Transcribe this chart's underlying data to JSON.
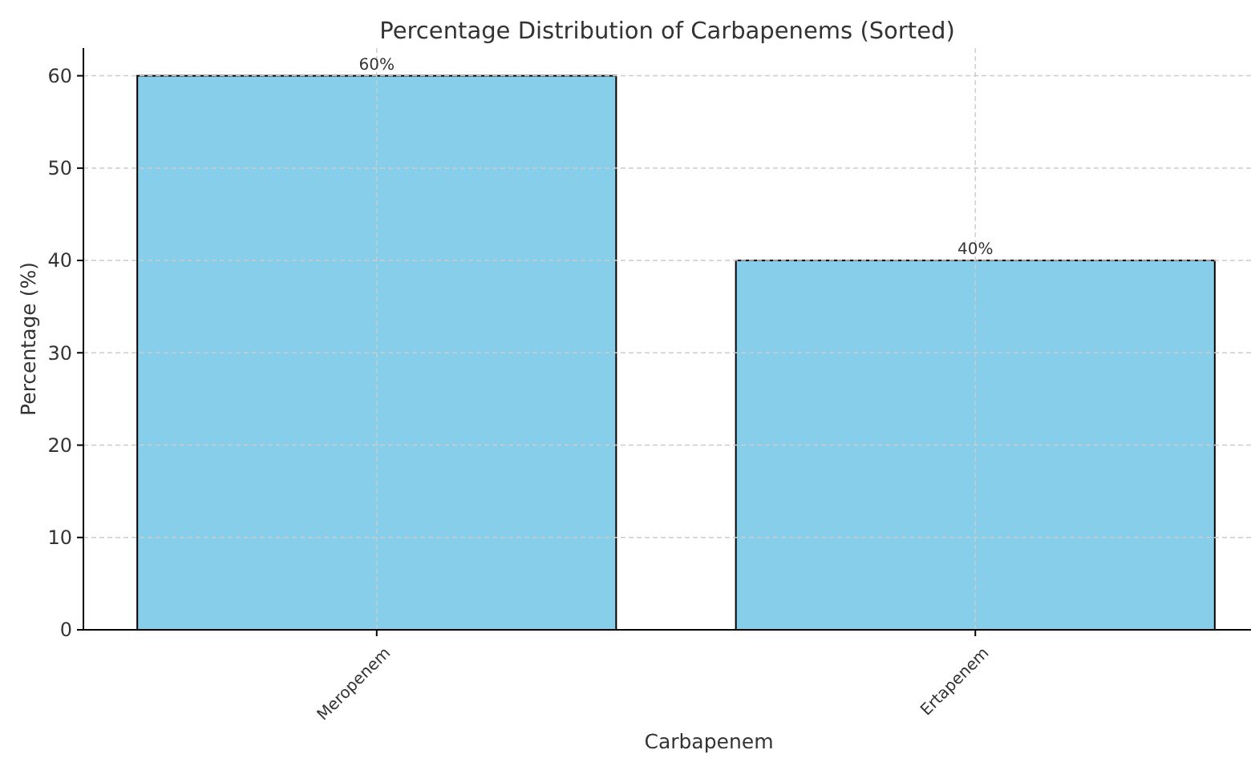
{
  "chart_data": {
    "type": "bar",
    "title": "Percentage Distribution of Carbapenems (Sorted)",
    "xlabel": "Carbapenem",
    "ylabel": "Percentage (%)",
    "categories": [
      "Meropenem",
      "Ertapenem"
    ],
    "values": [
      60,
      40
    ],
    "color": "#87ceeb",
    "value_labels": [
      "60%",
      "40%"
    ],
    "ylim": [
      0,
      63
    ],
    "yticks": [
      0,
      10,
      20,
      30,
      40,
      50,
      60
    ],
    "grid": true
  }
}
